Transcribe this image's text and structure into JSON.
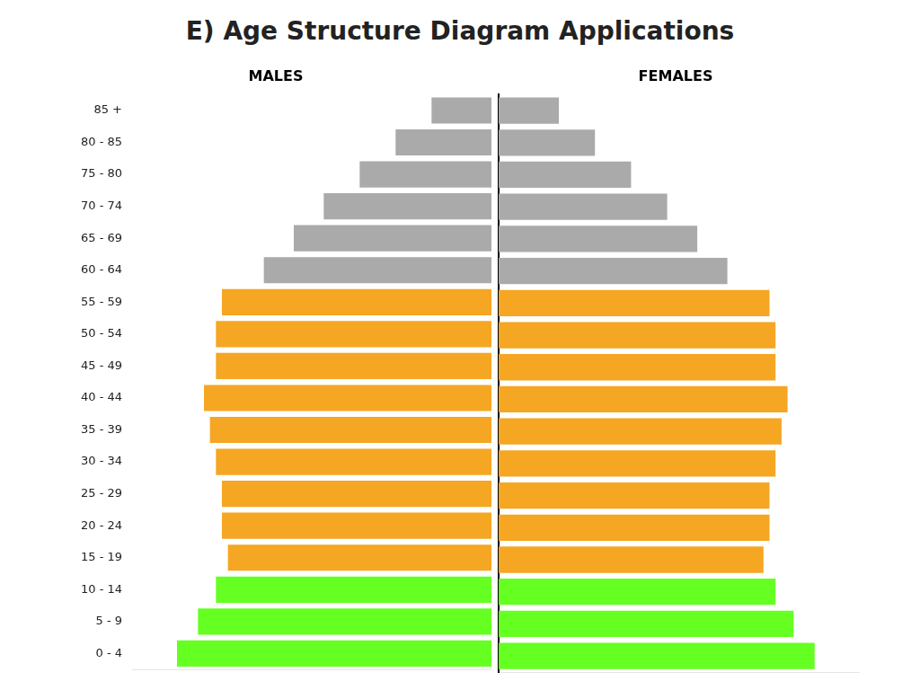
{
  "chart_data": {
    "type": "bar",
    "orientation": "horizontal",
    "title": "E) Age Structure Diagram Applications",
    "categories": [
      "85 +",
      "80 - 85",
      "75 - 80",
      "70 - 74",
      "65 - 69",
      "60 - 64",
      "55 - 59",
      "50 - 54",
      "45 - 49",
      "40 - 44",
      "35 - 39",
      "30 - 34",
      "25 - 29",
      "20 - 24",
      "15 - 19",
      "10 - 14",
      "5 - 9",
      "0 - 4"
    ],
    "series": [
      {
        "name": "MALES",
        "values": [
          2.0,
          3.2,
          4.4,
          5.6,
          6.6,
          7.6,
          9.0,
          9.2,
          9.2,
          9.6,
          9.4,
          9.2,
          9.0,
          9.0,
          8.8,
          9.2,
          9.8,
          10.5
        ],
        "colors": [
          "#aaaaaa",
          "#aaaaaa",
          "#aaaaaa",
          "#aaaaaa",
          "#aaaaaa",
          "#aaaaaa",
          "#f5a623",
          "#f5a623",
          "#f5a623",
          "#f5a623",
          "#f5a623",
          "#f5a623",
          "#f5a623",
          "#f5a623",
          "#f5a623",
          "#66ff22",
          "#66ff22",
          "#66ff22"
        ]
      },
      {
        "name": "FEMALES",
        "values": [
          2.0,
          3.2,
          4.4,
          5.6,
          6.6,
          7.6,
          9.0,
          9.2,
          9.2,
          9.6,
          9.4,
          9.2,
          9.0,
          9.0,
          8.8,
          9.2,
          9.8,
          10.5
        ],
        "colors": [
          "#aaaaaa",
          "#aaaaaa",
          "#aaaaaa",
          "#aaaaaa",
          "#aaaaaa",
          "#aaaaaa",
          "#f5a623",
          "#f5a623",
          "#f5a623",
          "#f5a623",
          "#f5a623",
          "#f5a623",
          "#f5a623",
          "#f5a623",
          "#f5a623",
          "#66ff22",
          "#66ff22",
          "#66ff22"
        ]
      }
    ],
    "xlim": [
      0,
      12
    ],
    "tick_labels": "y",
    "grid": false
  }
}
